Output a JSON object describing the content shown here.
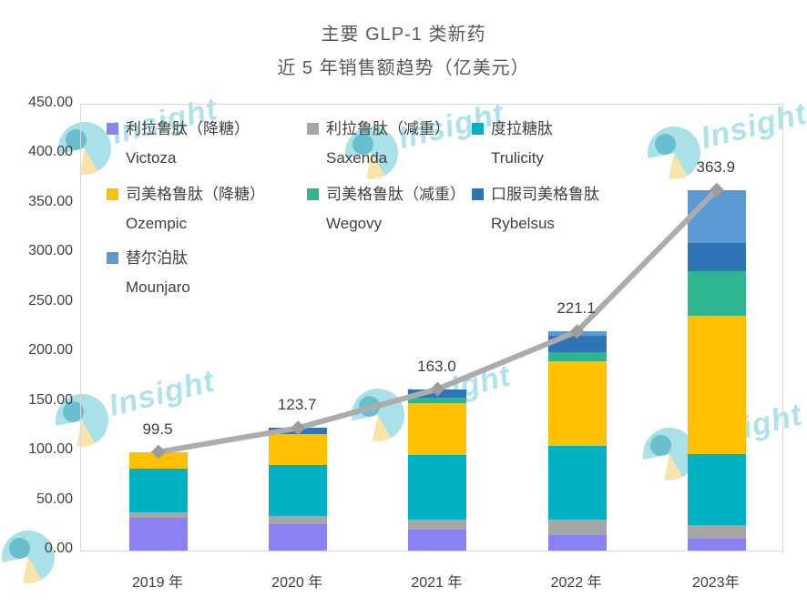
{
  "title": {
    "line1": "主要 GLP-1 类新药",
    "line2": "近 5 年销售额趋势（亿美元）"
  },
  "watermark": {
    "text": "Insight"
  },
  "chart_data": {
    "type": "bar",
    "stacked": true,
    "line_overlay": "totals",
    "title": "主要 GLP-1 类新药 近 5 年销售额趋势（亿美元）",
    "unit": "亿美元",
    "categories": [
      "2019 年",
      "2020 年",
      "2021 年",
      "2022 年",
      "2023年"
    ],
    "series": [
      {
        "name_cn": "利拉鲁肽（降糖）",
        "name_en": "Victoza",
        "color": "#8A81F5",
        "values": [
          33,
          27,
          21,
          16,
          12
        ]
      },
      {
        "name_cn": "利拉鲁肽（减重）",
        "name_en": "Saxenda",
        "color": "#A6A6A6",
        "values": [
          6,
          8,
          10,
          15,
          14
        ]
      },
      {
        "name_cn": "度拉糖肽",
        "name_en": "Trulicity",
        "color": "#00B1C3",
        "values": [
          44,
          51,
          65,
          74.4,
          71
        ]
      },
      {
        "name_cn": "司美格鲁肽（降糖）",
        "name_en": "Ozempic",
        "color": "#FFC000",
        "values": [
          16.5,
          32,
          53,
          86,
          140
        ]
      },
      {
        "name_cn": "司美格鲁肽（减重）",
        "name_en": "Wegovy",
        "color": "#2EB690",
        "values": [
          0,
          0,
          5,
          9.2,
          45
        ]
      },
      {
        "name_cn": "口服司美格鲁肽",
        "name_en": "Rybelsus",
        "color": "#2E75B6",
        "values": [
          0,
          5.7,
          9,
          16,
          28
        ]
      },
      {
        "name_cn": "替尔泊肽",
        "name_en": "Mounjaro",
        "color": "#5B9BD5",
        "values": [
          0,
          0,
          0,
          4.5,
          53.9
        ]
      }
    ],
    "totals": [
      99.5,
      123.7,
      163.0,
      221.1,
      363.9
    ],
    "total_labels": [
      "99.5",
      "123.7",
      "163.0",
      "221.1",
      "363.9"
    ],
    "line": {
      "color": "#ACACAC",
      "marker_color": "#9C9C9C",
      "marker": "diamond"
    },
    "y_axis": {
      "min": 0,
      "max": 450,
      "step": 50,
      "tick_labels": [
        "0.00",
        "50.00",
        "100.00",
        "150.00",
        "200.00",
        "250.00",
        "300.00",
        "350.00",
        "400.00",
        "450.00"
      ]
    },
    "grid": false,
    "legend_position": "top-left-inside"
  }
}
